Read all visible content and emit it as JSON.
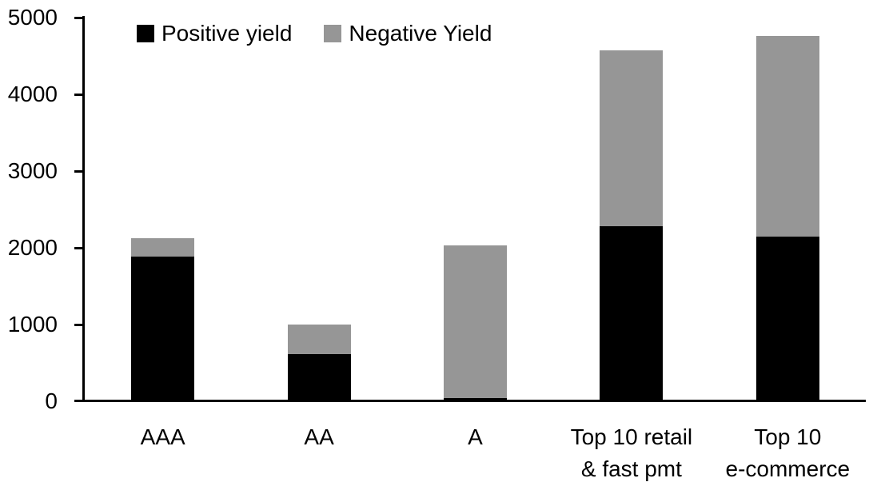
{
  "chart_data": {
    "type": "bar",
    "stacked": true,
    "title": "",
    "xlabel": "",
    "ylabel": "",
    "categories": [
      "AAA",
      "AA",
      "A",
      "Top 10 retail\n& fast pmt",
      "Top 10\ne-commerce"
    ],
    "series": [
      {
        "name": "Positive yield",
        "color": "#000000",
        "values": [
          1890,
          610,
          40,
          2280,
          2150
        ]
      },
      {
        "name": "Negative Yield",
        "color": "#969696",
        "values": [
          240,
          390,
          1990,
          2290,
          2615
        ]
      }
    ],
    "ylim": [
      0,
      5000
    ],
    "yticks": [
      "0",
      "1000",
      "2000",
      "3000",
      "4000",
      "5000"
    ],
    "grid": false,
    "legend_position": "top-left",
    "axis_color": "#000000",
    "background_color": "#ffffff"
  }
}
